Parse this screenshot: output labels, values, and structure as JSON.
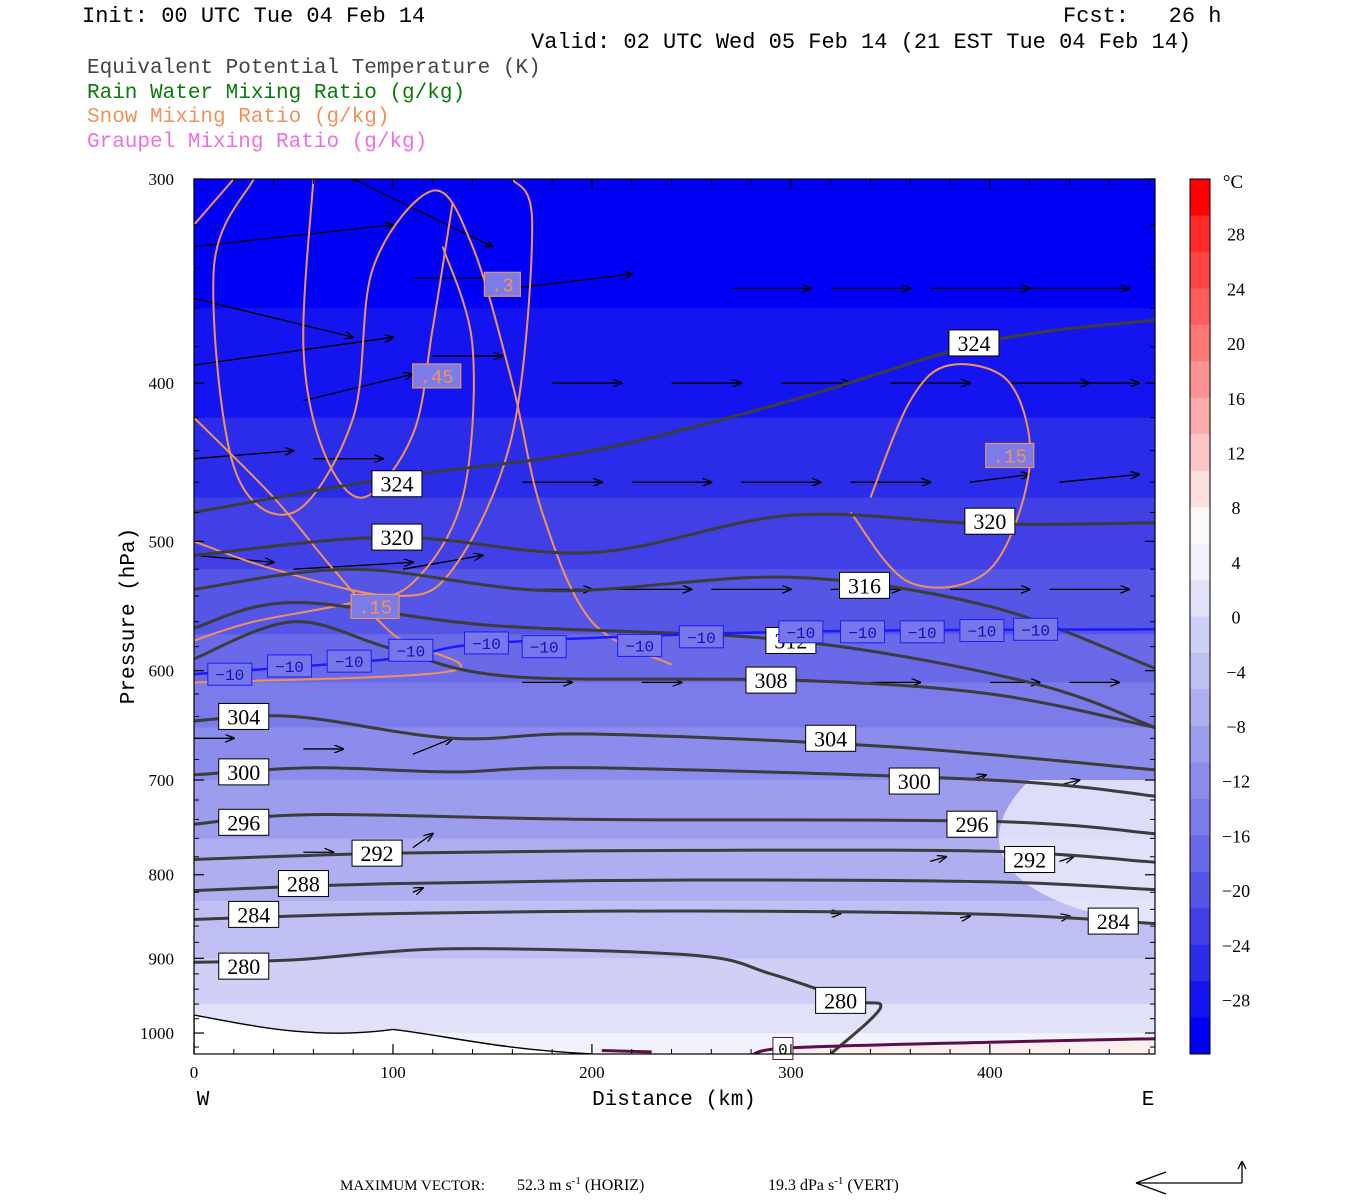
{
  "header": {
    "init": "Init: 00 UTC Tue 04 Feb 14",
    "fcst": "Fcst:   26 h",
    "valid": "Valid: 02 UTC Wed 05 Feb 14 (21 EST Tue 04 Feb 14)"
  },
  "legend": [
    {
      "label": "Equivalent Potential Temperature (K)",
      "color": "#444444"
    },
    {
      "label": "Rain Water Mixing Ratio (g/kg)",
      "color": "#0a7a0a"
    },
    {
      "label": "Snow Mixing Ratio (g/kg)",
      "color": "#f2925a"
    },
    {
      "label": "Graupel Mixing Ratio (g/kg)",
      "color": "#ef6fe0"
    }
  ],
  "footer": {
    "max_vector_label": "MAXIMUM VECTOR:",
    "horiz": "52.3 m s",
    "horiz_tail": "(HORIZ)",
    "vert": "19.3 dPa s",
    "vert_tail": "(VERT)",
    "sup": "-1"
  },
  "chart_data": {
    "type": "contour",
    "xlabel": "Distance (km)",
    "ylabel": "Pressure (hPa)",
    "xlim": [
      0,
      483
    ],
    "ylim": [
      1030,
      300
    ],
    "y_scale": "log",
    "x_ticks": [
      0,
      100,
      200,
      300,
      400
    ],
    "y_ticks": [
      300,
      400,
      500,
      600,
      700,
      800,
      900,
      1000
    ],
    "x_end_labels": {
      "left": "W",
      "right": "E"
    },
    "fill_variable": "Temperature",
    "colorbar": {
      "unit": "°C",
      "ticks": [
        "28",
        "24",
        "20",
        "16",
        "12",
        "8",
        "4",
        "0",
        "−4",
        "−8",
        "−12",
        "−16",
        "−20",
        "−24",
        "−28"
      ],
      "colors": [
        "#fe0000",
        "#fe2a2a",
        "#fe4343",
        "#fd5d5d",
        "#fd7777",
        "#fc9191",
        "#fcaaaa",
        "#fbc5c5",
        "#fbdede",
        "#fdf8f8",
        "#f2f2fc",
        "#e1e1f8",
        "#d0d0f6",
        "#bfbff3",
        "#aeaef0",
        "#9d9dee",
        "#8c8cec",
        "#7b7bea",
        "#6a6ae8",
        "#5555e6",
        "#4040e6",
        "#2b2bea",
        "#1414f0",
        "#0000f6"
      ]
    },
    "theta_e_contours_K": [
      {
        "level": 280,
        "pressure_hPa": [
          [
            0,
            905
          ],
          [
            50,
            902
          ],
          [
            130,
            888
          ],
          [
            250,
            896
          ],
          [
            290,
            920
          ],
          [
            330,
            955
          ],
          [
            345,
            965
          ],
          [
            320,
            1030
          ]
        ],
        "labels": [
          [
            25,
            910
          ],
          [
            325,
            955
          ]
        ]
      },
      {
        "level": 284,
        "pressure_hPa": [
          [
            0,
            852
          ],
          [
            100,
            845
          ],
          [
            250,
            842
          ],
          [
            400,
            846
          ],
          [
            483,
            857
          ]
        ],
        "labels": [
          [
            30,
            846
          ],
          [
            462,
            854
          ]
        ]
      },
      {
        "level": 288,
        "pressure_hPa": [
          [
            0,
            818
          ],
          [
            100,
            810
          ],
          [
            250,
            806
          ],
          [
            400,
            808
          ],
          [
            483,
            817
          ]
        ],
        "labels": [
          [
            55,
            810
          ]
        ]
      },
      {
        "level": 292,
        "pressure_hPa": [
          [
            0,
            783
          ],
          [
            100,
            776
          ],
          [
            250,
            773
          ],
          [
            400,
            774
          ],
          [
            483,
            786
          ]
        ],
        "labels": [
          [
            92,
            776
          ],
          [
            420,
            783
          ]
        ]
      },
      {
        "level": 296,
        "pressure_hPa": [
          [
            0,
            745
          ],
          [
            60,
            735
          ],
          [
            200,
            740
          ],
          [
            400,
            742
          ],
          [
            483,
            755
          ]
        ],
        "labels": [
          [
            25,
            743
          ],
          [
            391,
            745
          ]
        ]
      },
      {
        "level": 300,
        "pressure_hPa": [
          [
            0,
            695
          ],
          [
            60,
            688
          ],
          [
            130,
            692
          ],
          [
            200,
            688
          ],
          [
            400,
            700
          ],
          [
            483,
            716
          ]
        ],
        "labels": [
          [
            25,
            692
          ],
          [
            362,
            701
          ]
        ]
      },
      {
        "level": 304,
        "pressure_hPa": [
          [
            0,
            644
          ],
          [
            50,
            640
          ],
          [
            130,
            660
          ],
          [
            200,
            656
          ],
          [
            350,
            668
          ],
          [
            483,
            690
          ]
        ],
        "labels": [
          [
            25,
            640
          ],
          [
            320,
            660
          ]
        ]
      },
      {
        "level": 308,
        "pressure_hPa": [
          [
            0,
            590
          ],
          [
            50,
            560
          ],
          [
            100,
            582
          ],
          [
            160,
            605
          ],
          [
            300,
            608
          ],
          [
            400,
            620
          ],
          [
            483,
            650
          ]
        ],
        "labels": [
          [
            290,
            608
          ]
        ]
      },
      {
        "level": 312,
        "pressure_hPa": [
          [
            0,
            565
          ],
          [
            50,
            545
          ],
          [
            150,
            563
          ],
          [
            300,
            575
          ],
          [
            420,
            610
          ],
          [
            483,
            650
          ]
        ],
        "labels": [
          [
            300,
            575
          ]
        ]
      },
      {
        "level": 316,
        "pressure_hPa": [
          [
            0,
            535
          ],
          [
            80,
            520
          ],
          [
            180,
            536
          ],
          [
            300,
            526
          ],
          [
            400,
            548
          ],
          [
            483,
            598
          ]
        ],
        "labels": [
          [
            337,
            532
          ]
        ]
      },
      {
        "level": 320,
        "pressure_hPa": [
          [
            0,
            510
          ],
          [
            100,
            497
          ],
          [
            200,
            508
          ],
          [
            300,
            482
          ],
          [
            400,
            488
          ],
          [
            483,
            487
          ]
        ],
        "labels": [
          [
            102,
            497
          ],
          [
            400,
            486
          ]
        ]
      },
      {
        "level": 324,
        "pressure_hPa": [
          [
            0,
            480
          ],
          [
            100,
            457
          ],
          [
            200,
            440
          ],
          [
            300,
            410
          ],
          [
            400,
            377
          ],
          [
            483,
            366
          ]
        ],
        "labels": [
          [
            102,
            461
          ],
          [
            392,
            378
          ]
        ]
      }
    ],
    "isotherm_minus10": {
      "level": "−10",
      "pressure_hPa": [
        [
          0,
          603
        ],
        [
          100,
          590
        ],
        [
          150,
          577
        ],
        [
          300,
          568
        ],
        [
          483,
          566
        ]
      ]
    },
    "isotherm_0": {
      "level": "0",
      "pressure_hPa": [
        [
          280,
          1032
        ],
        [
          300,
          1021
        ],
        [
          400,
          1013
        ],
        [
          483,
          1008
        ]
      ],
      "labels": [
        [
          296,
          1022
        ]
      ]
    },
    "snow_mixing_ratio_labels": [
      ".3",
      ".45",
      ".15",
      ".15"
    ],
    "snow_mixing_ratio_label_points": [
      [
        155,
        348
      ],
      [
        122,
        396
      ],
      [
        410,
        443
      ],
      [
        91,
        548
      ]
    ],
    "max_vector": {
      "horizontal_m_s": 52.3,
      "vertical_dPa_s": 19.3
    }
  }
}
